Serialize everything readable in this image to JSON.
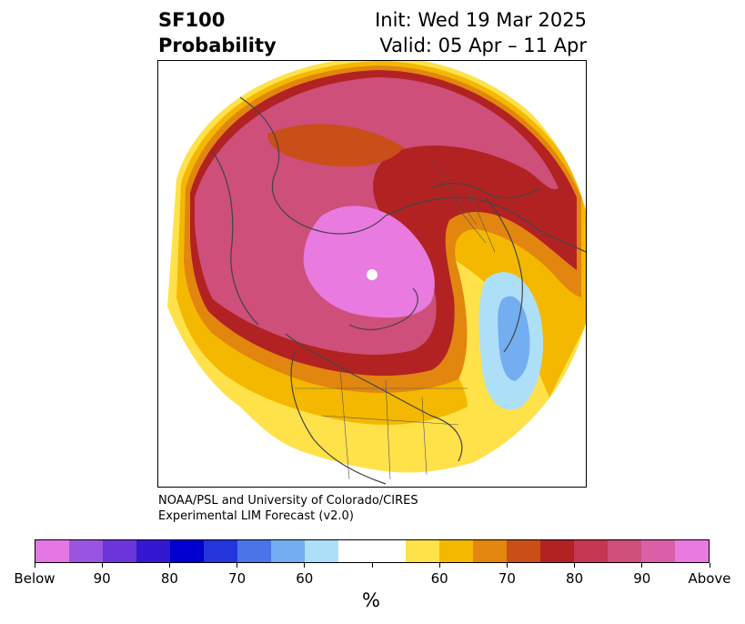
{
  "title": {
    "line1": "SF100",
    "line2": "Probability",
    "init": "Init: Wed 19 Mar 2025",
    "valid": "Valid: 05 Apr – 11 Apr"
  },
  "credit": {
    "line1": "NOAA/PSL and University of Colorado/CIRES",
    "line2": "Experimental LIM Forecast (v2.0)"
  },
  "colorbar": {
    "unit": "%",
    "colors": [
      "#e477e4",
      "#9a55e0",
      "#6b35d9",
      "#3418d1",
      "#0000cf",
      "#2236dc",
      "#4a74e8",
      "#72aef0",
      "#aedff9",
      "#ffffff",
      "#ffffff",
      "#ffe14a",
      "#f4b800",
      "#e2860f",
      "#c94e17",
      "#b22222",
      "#c53651",
      "#cd4f7a",
      "#d95fa8",
      "#e87ae0"
    ],
    "labels": [
      "Below",
      "90",
      "80",
      "70",
      "60",
      "",
      "60",
      "70",
      "80",
      "90",
      "Above"
    ]
  },
  "legend_colors": {
    "above_strong": "#e87ae0",
    "above_90": "#cd4f7a",
    "above_80": "#b22222",
    "above_70": "#c94e17",
    "above_60": "#f4b800",
    "below_60": "#aedff9",
    "below_70": "#72aef0"
  }
}
